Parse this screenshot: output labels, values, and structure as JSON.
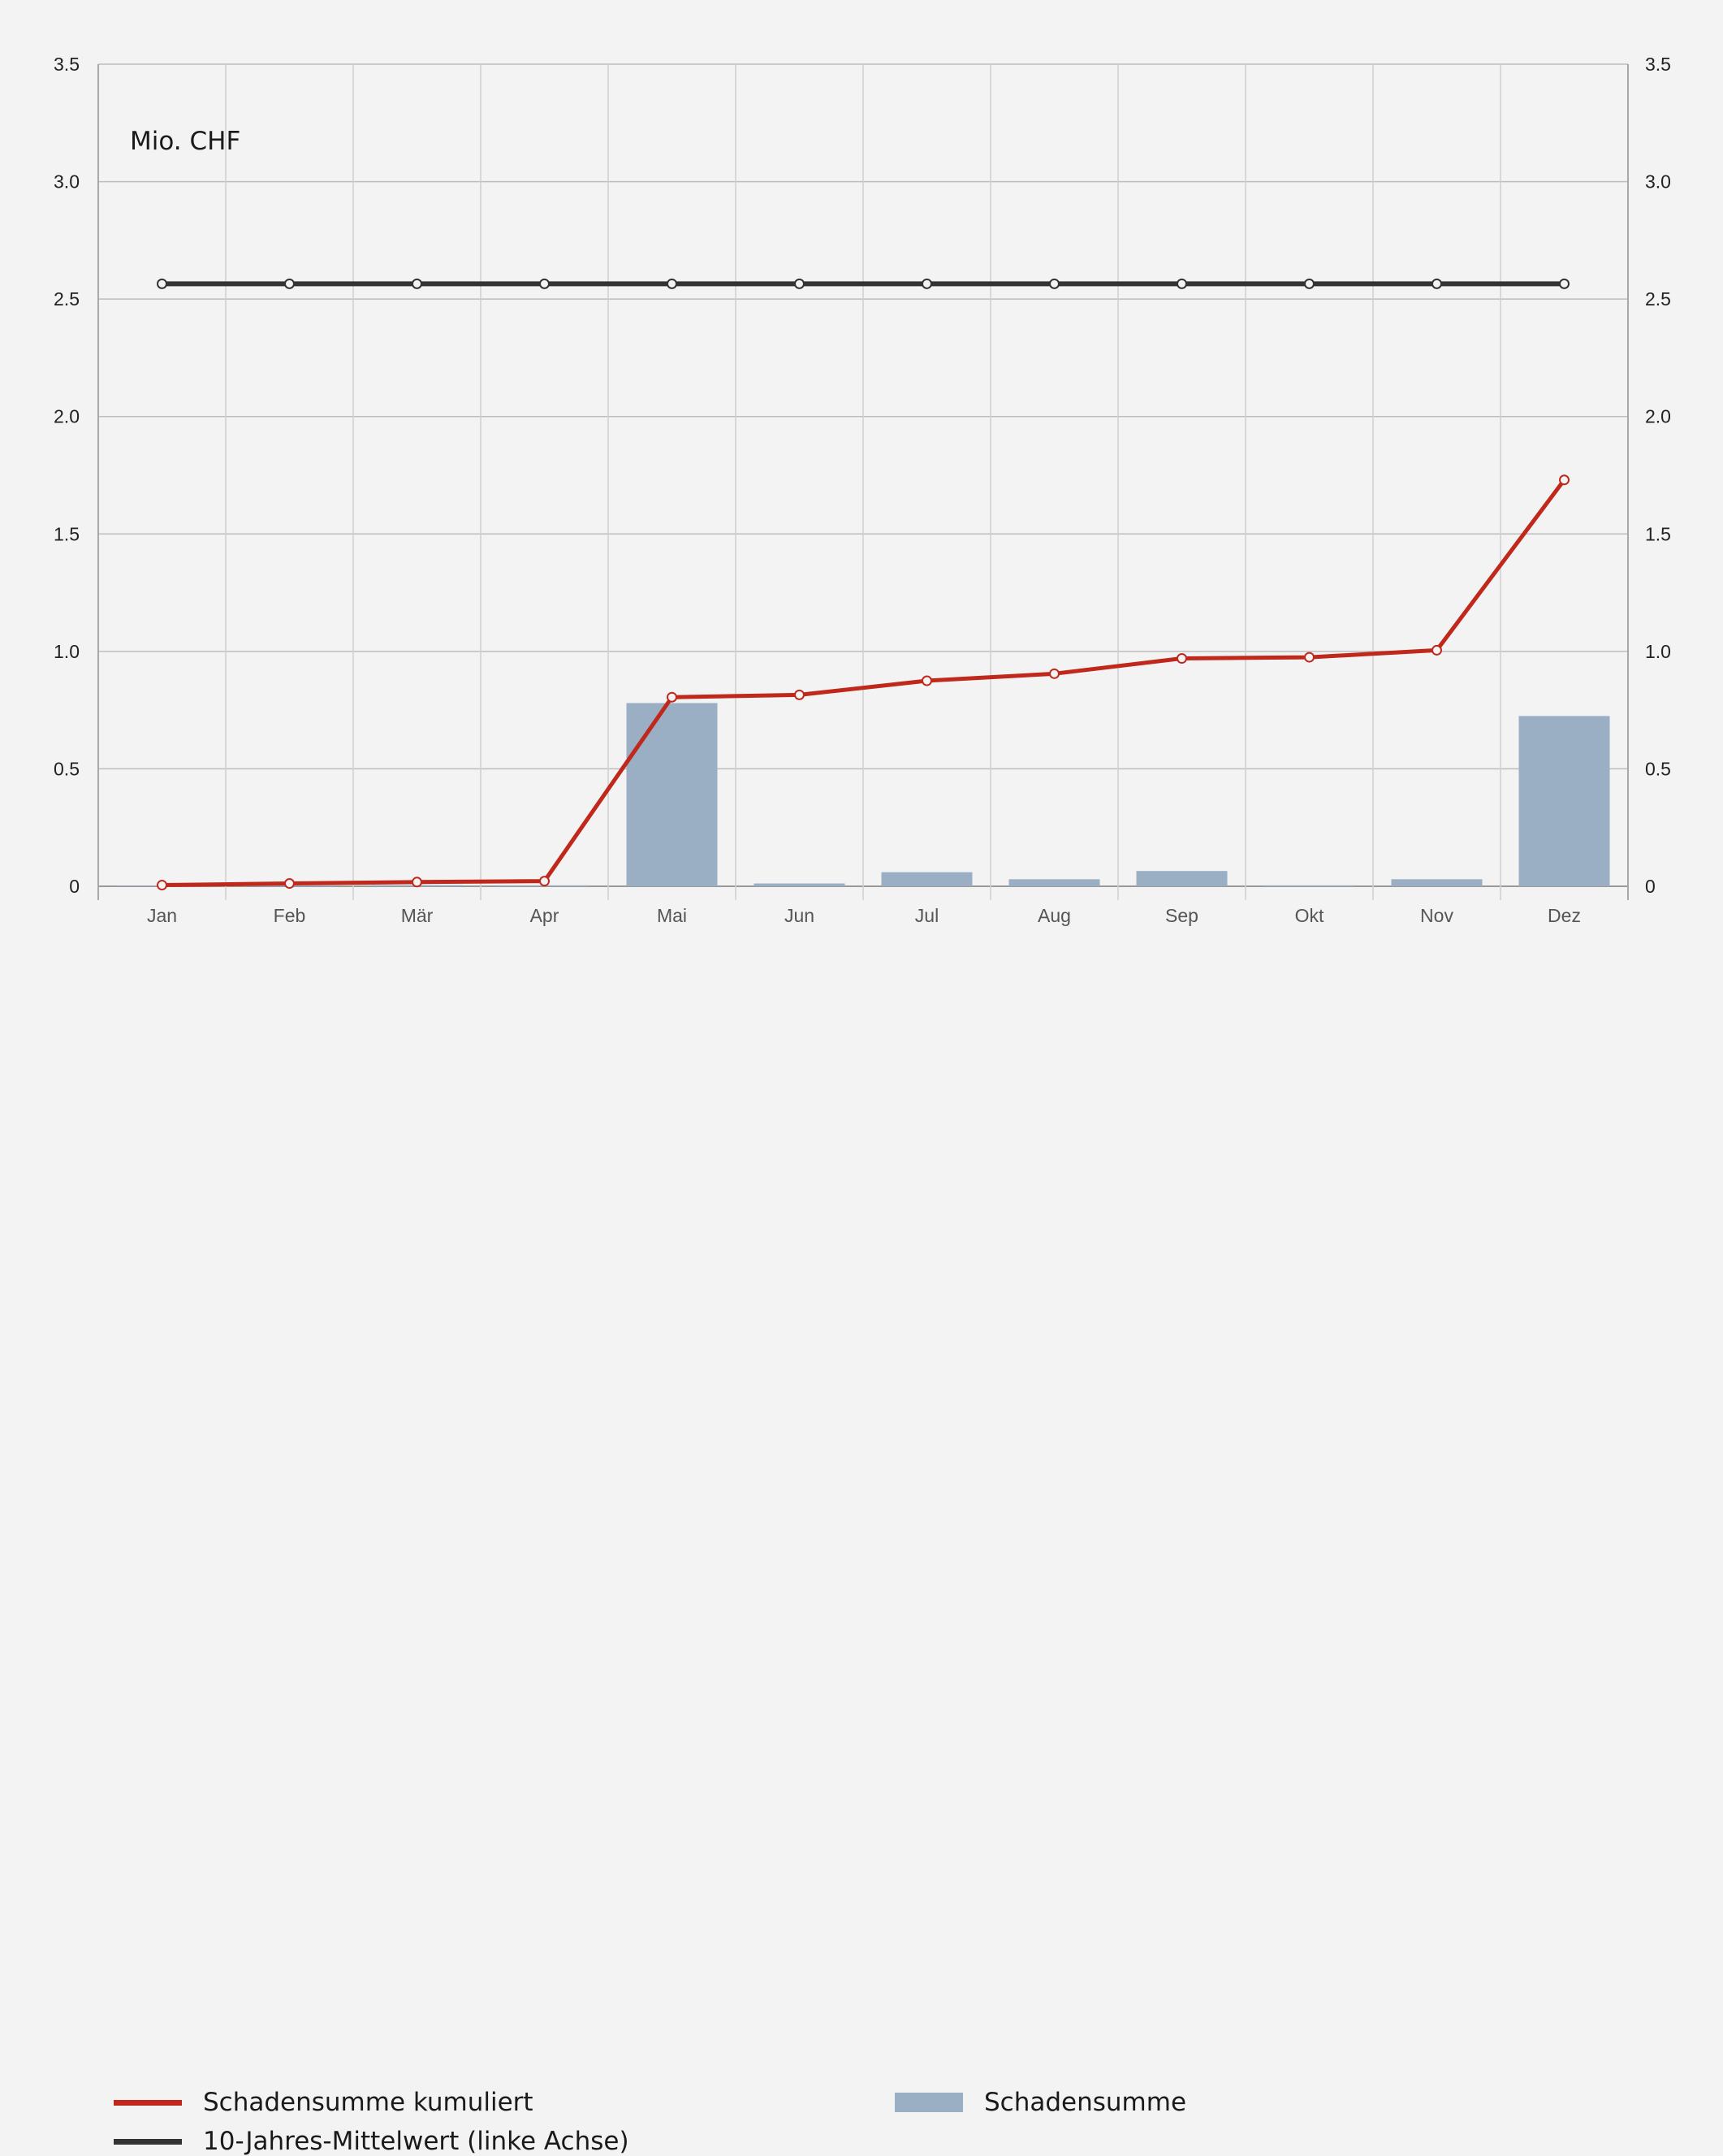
{
  "chart_data": {
    "type": "bar",
    "unit_label": "Mio. CHF",
    "categories": [
      "Jan",
      "Feb",
      "Mär",
      "Apr",
      "Mai",
      "Jun",
      "Jul",
      "Aug",
      "Sep",
      "Okt",
      "Nov",
      "Dez"
    ],
    "y_left": {
      "ylim": [
        0,
        3.5
      ],
      "ticks": [
        "0",
        "0.5",
        "1.0",
        "1.5",
        "2.0",
        "2.5",
        "3.0",
        "3.5"
      ]
    },
    "y_right": {
      "ylim": [
        0,
        3.5
      ],
      "ticks": [
        "0",
        "0.5",
        "1.0",
        "1.5",
        "2.0",
        "2.5",
        "3.0",
        "3.5"
      ]
    },
    "grid": true,
    "legend_position": "bottom",
    "series": [
      {
        "name": "Schadensumme",
        "kind": "bar",
        "color": "#9aafc4",
        "values": [
          0.002,
          0.004,
          0.005,
          0.004,
          0.78,
          0.012,
          0.06,
          0.03,
          0.065,
          0.004,
          0.03,
          0.725
        ]
      },
      {
        "name": "Schadensumme kumuliert",
        "kind": "line",
        "color": "#c0281b",
        "values": [
          0.005,
          0.012,
          0.018,
          0.022,
          0.805,
          0.815,
          0.875,
          0.905,
          0.97,
          0.975,
          1.005,
          1.73
        ]
      },
      {
        "name": "10-Jahres-Mittelwert (linke Achse)",
        "kind": "line",
        "color": "#333333",
        "values": [
          2.565,
          2.565,
          2.565,
          2.565,
          2.565,
          2.565,
          2.565,
          2.565,
          2.565,
          2.565,
          2.565,
          2.565
        ]
      }
    ]
  }
}
